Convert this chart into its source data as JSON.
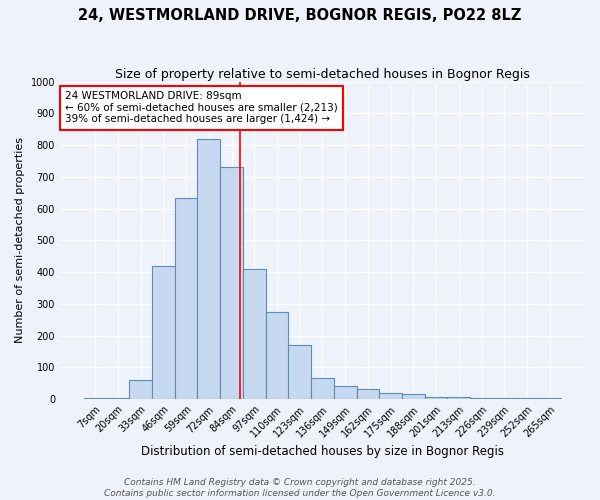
{
  "title": "24, WESTMORLAND DRIVE, BOGNOR REGIS, PO22 8LZ",
  "subtitle": "Size of property relative to semi-detached houses in Bognor Regis",
  "xlabel": "Distribution of semi-detached houses by size in Bognor Regis",
  "ylabel": "Number of semi-detached properties",
  "categories": [
    "7sqm",
    "20sqm",
    "33sqm",
    "46sqm",
    "59sqm",
    "72sqm",
    "84sqm",
    "97sqm",
    "110sqm",
    "123sqm",
    "136sqm",
    "149sqm",
    "162sqm",
    "175sqm",
    "188sqm",
    "201sqm",
    "213sqm",
    "226sqm",
    "239sqm",
    "252sqm",
    "265sqm"
  ],
  "values": [
    3,
    3,
    60,
    420,
    635,
    820,
    730,
    410,
    275,
    170,
    65,
    42,
    33,
    20,
    15,
    8,
    5,
    3,
    3,
    2,
    3
  ],
  "bar_color": "#c6d9f0",
  "bar_edge_color": "#5b8db8",
  "annotation_text": "24 WESTMORLAND DRIVE: 89sqm\n← 60% of semi-detached houses are smaller (2,213)\n39% of semi-detached houses are larger (1,424) →",
  "annotation_box_color": "white",
  "annotation_box_edge_color": "red",
  "vline_color": "red",
  "vline_x_index": 6,
  "vline_x_offset": 0.38,
  "footer_line1": "Contains HM Land Registry data © Crown copyright and database right 2025.",
  "footer_line2": "Contains public sector information licensed under the Open Government Licence v3.0.",
  "ylim": [
    0,
    1000
  ],
  "yticks": [
    0,
    100,
    200,
    300,
    400,
    500,
    600,
    700,
    800,
    900,
    1000
  ],
  "background_color": "#eef2fa",
  "grid_color": "#ffffff",
  "title_fontsize": 10.5,
  "subtitle_fontsize": 9,
  "xlabel_fontsize": 8.5,
  "ylabel_fontsize": 8,
  "tick_fontsize": 7,
  "annotation_fontsize": 7.5,
  "footer_fontsize": 6.5
}
